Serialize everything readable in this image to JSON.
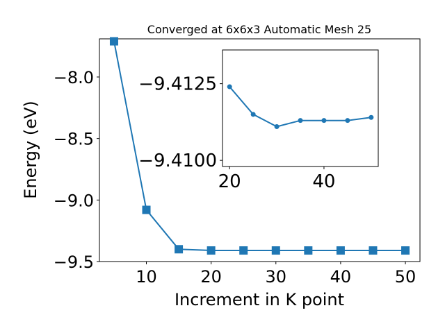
{
  "chart_data": [
    {
      "id": "main",
      "type": "line",
      "title": "Converged at 6x6x3 Automatic Mesh 25",
      "xlabel": "Increment in K point",
      "ylabel": "Energy (eV)",
      "xlim": [
        2.75,
        52.25
      ],
      "ylim": [
        -9.5,
        -7.69
      ],
      "xticks": [
        10,
        20,
        30,
        40,
        50
      ],
      "xtick_labels": [
        "10",
        "20",
        "30",
        "40",
        "50"
      ],
      "yticks": [
        -9.5,
        -9.0,
        -8.5,
        -8.0
      ],
      "ytick_labels": [
        "−9.5",
        "−9.0",
        "−8.5",
        "−8.0"
      ],
      "grid": false,
      "series": [
        {
          "color": "#1f77b4",
          "marker": "square",
          "x": [
            5,
            10,
            15,
            20,
            25,
            30,
            35,
            40,
            45,
            50
          ],
          "y": [
            -7.71,
            -9.08,
            -9.4,
            -9.41,
            -9.41,
            -9.41,
            -9.41,
            -9.41,
            -9.41,
            -9.41
          ]
        }
      ]
    },
    {
      "id": "inset",
      "type": "line",
      "title": "",
      "xlabel": "",
      "ylabel": "",
      "xlim": [
        18.5,
        51.5
      ],
      "ylim": [
        -9.4098,
        -9.4136
      ],
      "xticks": [
        20,
        40
      ],
      "xtick_labels": [
        "20",
        "40"
      ],
      "yticks": [
        -9.4125,
        -9.41
      ],
      "ytick_labels": [
        "−9.4125",
        "−9.4100"
      ],
      "grid": false,
      "series": [
        {
          "color": "#1f77b4",
          "marker": "circle",
          "x": [
            20,
            25,
            30,
            35,
            40,
            45,
            50
          ],
          "y": [
            -9.4124,
            -9.4115,
            -9.4111,
            -9.4113,
            -9.4113,
            -9.4113,
            -9.4114
          ]
        }
      ]
    }
  ]
}
